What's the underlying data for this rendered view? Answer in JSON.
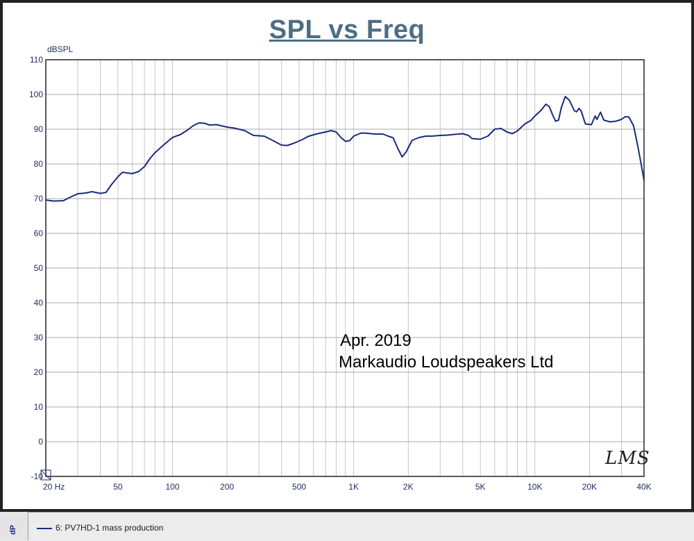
{
  "title": "SPL vs Freq",
  "ylabel": "dBSPL",
  "annotations": {
    "line1": "Apr. 2019",
    "line2": "Markaudio Loudspeakers Ltd"
  },
  "logo": "LMS",
  "legend": {
    "side_label": "dP",
    "entry": "6: PV7HD-1 mass production"
  },
  "colors": {
    "curve": "#1a2a7a",
    "title": "#4d6e82",
    "axis_text": "#1f2a5a",
    "grid": "#b8b8b8"
  },
  "chart_data": {
    "type": "line",
    "title": "SPL vs Freq",
    "xlabel": "",
    "ylabel": "dBSPL",
    "x_scale": "log",
    "xlim": [
      20,
      40000
    ],
    "ylim": [
      -10,
      110
    ],
    "grid": true,
    "xticks": [
      {
        "v": 20,
        "label": "20  Hz"
      },
      {
        "v": 50,
        "label": "50"
      },
      {
        "v": 100,
        "label": "100"
      },
      {
        "v": 200,
        "label": "200"
      },
      {
        "v": 500,
        "label": "500"
      },
      {
        "v": 1000,
        "label": "1K"
      },
      {
        "v": 2000,
        "label": "2K"
      },
      {
        "v": 5000,
        "label": "5K"
      },
      {
        "v": 10000,
        "label": "10K"
      },
      {
        "v": 20000,
        "label": "20K"
      },
      {
        "v": 40000,
        "label": "40K"
      }
    ],
    "yticks": [
      {
        "v": 110,
        "label": "110"
      },
      {
        "v": 100,
        "label": "100"
      },
      {
        "v": 90,
        "label": "90"
      },
      {
        "v": 80,
        "label": "80"
      },
      {
        "v": 70,
        "label": "70"
      },
      {
        "v": 60,
        "label": "60"
      },
      {
        "v": 50,
        "label": "50"
      },
      {
        "v": 40,
        "label": "40"
      },
      {
        "v": 30,
        "label": "30"
      },
      {
        "v": 20,
        "label": "20"
      },
      {
        "v": 10,
        "label": "10"
      },
      {
        "v": 0,
        "label": "0"
      },
      {
        "v": -10,
        "label": "-10"
      }
    ],
    "series": [
      {
        "name": "6: PV7HD-1 mass production",
        "points": [
          [
            20,
            69.6
          ],
          [
            22,
            69.3
          ],
          [
            25,
            69.4
          ],
          [
            27,
            70.3
          ],
          [
            30,
            71.4
          ],
          [
            33,
            71.6
          ],
          [
            36,
            72.0
          ],
          [
            40,
            71.5
          ],
          [
            43,
            71.8
          ],
          [
            46,
            74.0
          ],
          [
            50,
            76.3
          ],
          [
            53,
            77.6
          ],
          [
            56,
            77.4
          ],
          [
            60,
            77.2
          ],
          [
            65,
            77.8
          ],
          [
            70,
            79.2
          ],
          [
            75,
            81.5
          ],
          [
            80,
            83.2
          ],
          [
            90,
            85.6
          ],
          [
            100,
            87.6
          ],
          [
            110,
            88.4
          ],
          [
            120,
            89.6
          ],
          [
            130,
            91.0
          ],
          [
            140,
            91.8
          ],
          [
            150,
            91.7
          ],
          [
            160,
            91.2
          ],
          [
            175,
            91.3
          ],
          [
            200,
            90.6
          ],
          [
            220,
            90.3
          ],
          [
            250,
            89.6
          ],
          [
            280,
            88.2
          ],
          [
            320,
            88.0
          ],
          [
            350,
            87.0
          ],
          [
            400,
            85.4
          ],
          [
            430,
            85.3
          ],
          [
            470,
            86.0
          ],
          [
            520,
            87.0
          ],
          [
            560,
            87.9
          ],
          [
            620,
            88.6
          ],
          [
            700,
            89.2
          ],
          [
            750,
            89.6
          ],
          [
            800,
            89.2
          ],
          [
            850,
            87.6
          ],
          [
            900,
            86.5
          ],
          [
            950,
            86.7
          ],
          [
            1000,
            88.0
          ],
          [
            1100,
            88.9
          ],
          [
            1200,
            88.8
          ],
          [
            1300,
            88.6
          ],
          [
            1450,
            88.6
          ],
          [
            1550,
            88.0
          ],
          [
            1650,
            87.5
          ],
          [
            1750,
            84.5
          ],
          [
            1850,
            82.0
          ],
          [
            1950,
            83.5
          ],
          [
            2100,
            86.8
          ],
          [
            2300,
            87.6
          ],
          [
            2500,
            88.0
          ],
          [
            2700,
            88.0
          ],
          [
            3000,
            88.2
          ],
          [
            3300,
            88.3
          ],
          [
            3600,
            88.5
          ],
          [
            4000,
            88.7
          ],
          [
            4300,
            88.2
          ],
          [
            4500,
            87.3
          ],
          [
            5000,
            87.1
          ],
          [
            5500,
            88.0
          ],
          [
            6000,
            90.0
          ],
          [
            6500,
            90.2
          ],
          [
            7000,
            89.2
          ],
          [
            7500,
            88.7
          ],
          [
            8000,
            89.5
          ],
          [
            8800,
            91.5
          ],
          [
            9500,
            92.5
          ],
          [
            10000,
            93.8
          ],
          [
            10800,
            95.4
          ],
          [
            11500,
            97.2
          ],
          [
            12000,
            96.5
          ],
          [
            12500,
            94.2
          ],
          [
            13000,
            92.3
          ],
          [
            13500,
            92.6
          ],
          [
            14000,
            96.3
          ],
          [
            14700,
            99.4
          ],
          [
            15500,
            98.3
          ],
          [
            16500,
            95.3
          ],
          [
            17000,
            95.0
          ],
          [
            17500,
            96.0
          ],
          [
            18000,
            95.2
          ],
          [
            19000,
            91.5
          ],
          [
            20500,
            91.3
          ],
          [
            21500,
            93.8
          ],
          [
            22000,
            92.8
          ],
          [
            23000,
            94.9
          ],
          [
            24000,
            92.6
          ],
          [
            26000,
            92.1
          ],
          [
            28000,
            92.3
          ],
          [
            30000,
            92.8
          ],
          [
            31500,
            93.6
          ],
          [
            33000,
            93.5
          ],
          [
            35000,
            91.0
          ],
          [
            37000,
            85.0
          ],
          [
            39000,
            78.5
          ],
          [
            40000,
            75.3
          ]
        ]
      }
    ]
  }
}
